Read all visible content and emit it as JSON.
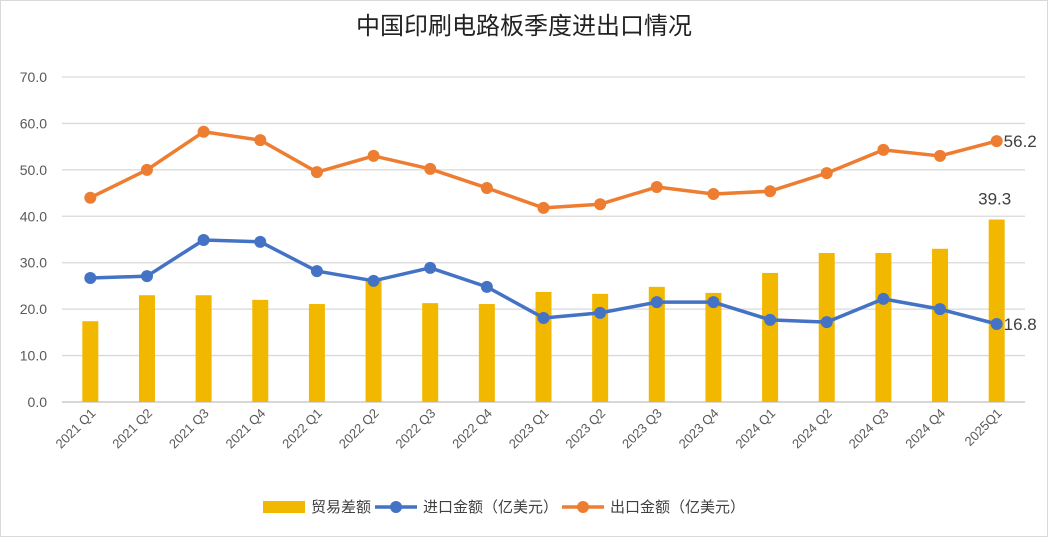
{
  "chart_data": {
    "type": "bar+line",
    "title": "中国印刷电路板季度进出口情况",
    "categories": [
      "2021 Q1",
      "2021 Q2",
      "2021 Q3",
      "2021 Q4",
      "2022 Q1",
      "2022 Q2",
      "2022 Q3",
      "2022 Q4",
      "2023 Q1",
      "2023 Q2",
      "2023 Q3",
      "2023 Q4",
      "2024 Q1",
      "2024 Q2",
      "2024 Q3",
      "2024 Q4",
      "2025Q1"
    ],
    "ylim": [
      0,
      70
    ],
    "yticks": [
      "0.0",
      "10.0",
      "20.0",
      "30.0",
      "40.0",
      "50.0",
      "60.0",
      "70.0"
    ],
    "grid": true,
    "legend_position": "bottom",
    "series": [
      {
        "name": "贸易差额",
        "kind": "bar",
        "color": "#f2b800",
        "values": [
          17.4,
          23.0,
          23.0,
          22.0,
          21.1,
          26.3,
          21.3,
          21.1,
          23.7,
          23.3,
          24.8,
          23.5,
          27.8,
          32.1,
          32.1,
          33.0,
          39.3
        ],
        "labels": {
          "16": "39.3"
        }
      },
      {
        "name": "进口金额（亿美元）",
        "kind": "line",
        "color": "#4472c4",
        "values": [
          26.7,
          27.1,
          34.9,
          34.5,
          28.2,
          26.1,
          28.9,
          24.8,
          18.1,
          19.2,
          21.5,
          21.5,
          17.7,
          17.2,
          22.2,
          20.0,
          16.8
        ],
        "labels": {
          "16": "16.8"
        }
      },
      {
        "name": "出口金额（亿美元）",
        "kind": "line",
        "color": "#ed7d31",
        "values": [
          44.0,
          50.0,
          58.2,
          56.4,
          49.5,
          53.0,
          50.2,
          46.1,
          41.8,
          42.6,
          46.3,
          44.8,
          45.4,
          49.3,
          54.3,
          53.0,
          56.2
        ],
        "labels": {
          "16": "56.2"
        }
      }
    ]
  }
}
